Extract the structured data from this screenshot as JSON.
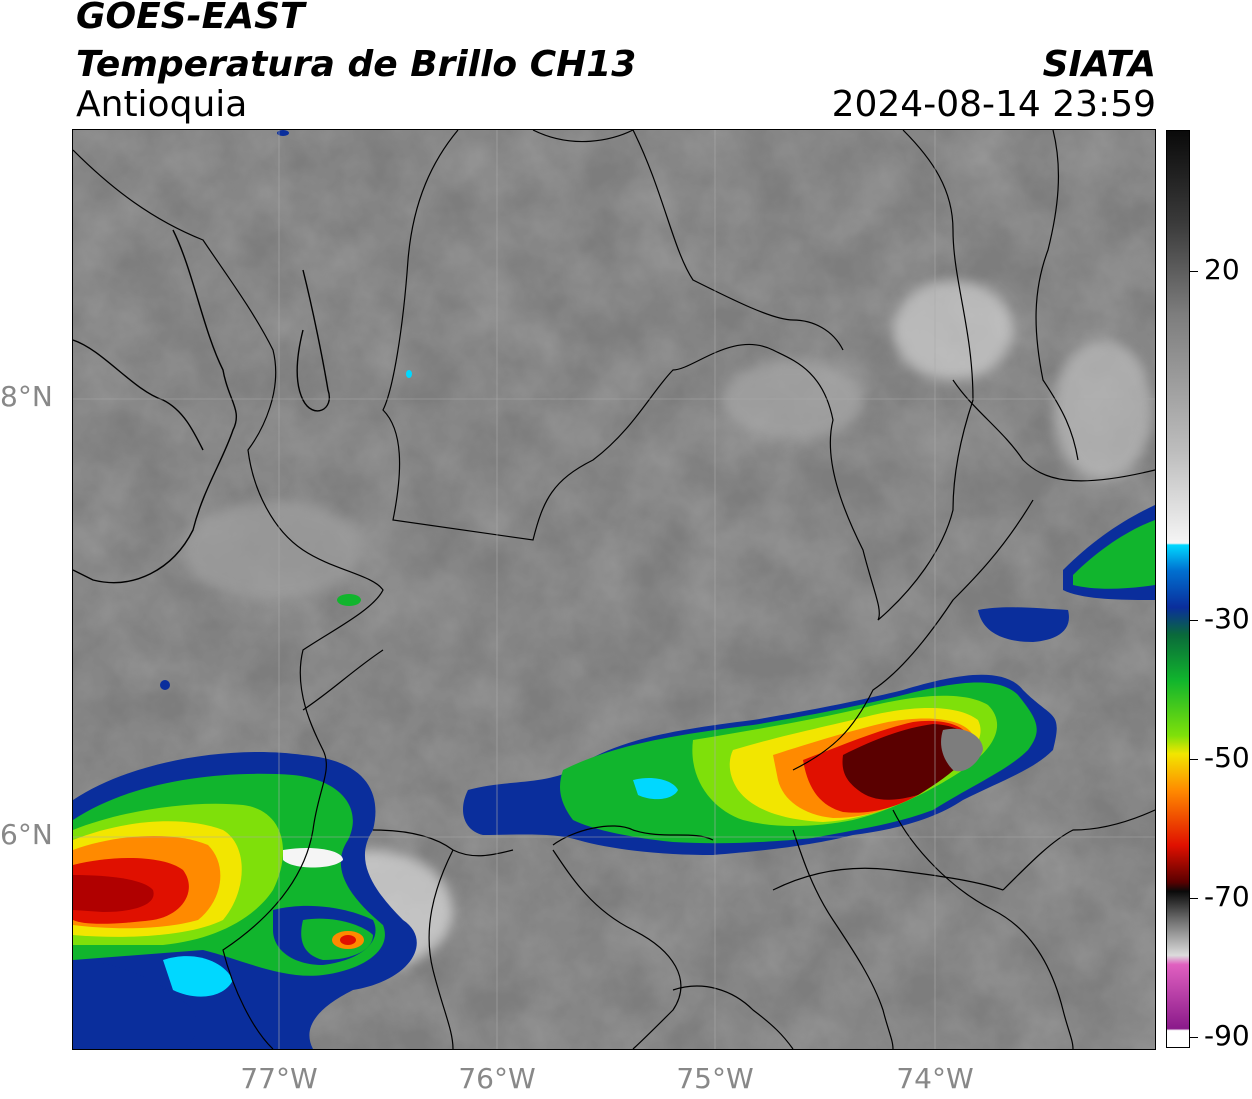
{
  "header": {
    "line1": "GOES-EAST",
    "line2": "Temperatura de Brillo CH13",
    "region": "Antioquia",
    "source": "SIATA",
    "datetime": "2024-08-14 23:59"
  },
  "axes": {
    "lat_labels": [
      "8°N",
      "6°N"
    ],
    "lon_labels": [
      "77°W",
      "76°W",
      "75°W",
      "74°W"
    ]
  },
  "colorbar": {
    "labels": [
      "20",
      "-30",
      "-50",
      "-70",
      "-90"
    ],
    "colors": {
      "black": "#0a0a0a",
      "gray": "#7d7d7d",
      "white": "#f5f5f5",
      "cyan": "#00d8ff",
      "blue": "#0a2e9c",
      "green": "#11b52d",
      "lime": "#7fe00a",
      "yellow": "#f2e600",
      "orange": "#ff8a00",
      "red": "#e01000",
      "darkred": "#5a0000",
      "pink": "#e060c0",
      "purple": "#8a1a8a"
    }
  }
}
